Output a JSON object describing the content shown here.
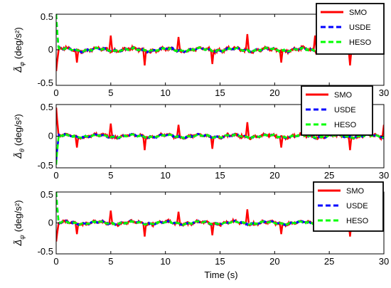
{
  "chart_data": {
    "type": "line",
    "xlabel": "Time (s)",
    "x_ticks": [
      "0",
      "5",
      "10",
      "15",
      "20",
      "25",
      "30"
    ],
    "x_tick_values": [
      0,
      5,
      10,
      15,
      20,
      25,
      30
    ],
    "xlim": [
      0,
      30
    ],
    "legend_placement": "top-right",
    "colors": {
      "SMO": "#ff0000",
      "USDE": "#0000ff",
      "HESO": "#00ff00"
    },
    "subplots": [
      {
        "ylabel_symbol": "Δ̃",
        "ylabel_sub": "φ",
        "ylabel_unit": "(deg/s²)",
        "y_ticks": [
          "-0.5",
          "0",
          "0.5"
        ],
        "y_tick_values": [
          -0.5,
          0,
          0.5
        ],
        "ylim": [
          -0.5,
          0.5
        ],
        "spike_times": [
          1.9,
          5.0,
          8.1,
          11.2,
          14.3,
          17.5,
          20.6,
          23.7,
          26.9,
          30.0
        ],
        "series": [
          {
            "name": "SMO",
            "initial_peak": -0.3
          },
          {
            "name": "USDE",
            "initial_peak": 0.5
          },
          {
            "name": "HESO",
            "initial_peak": 0.5
          }
        ]
      },
      {
        "ylabel_symbol": "Δ̃",
        "ylabel_sub": "θ",
        "ylabel_unit": "(deg/s²)",
        "y_ticks": [
          "-0.5",
          "0",
          "0.5"
        ],
        "y_tick_values": [
          -0.5,
          0,
          0.5
        ],
        "ylim": [
          -0.5,
          0.5
        ],
        "spike_times": [
          1.9,
          5.0,
          8.1,
          11.2,
          14.3,
          17.5,
          20.6,
          23.7,
          26.9,
          30.0
        ],
        "series": [
          {
            "name": "SMO",
            "initial_peak": 0.45
          },
          {
            "name": "USDE",
            "initial_peak": -0.4
          },
          {
            "name": "HESO",
            "initial_peak": -0.45
          }
        ]
      },
      {
        "ylabel_symbol": "Δ̃",
        "ylabel_sub": "ψ",
        "ylabel_unit": "(deg/s²)",
        "y_ticks": [
          "-0.5",
          "0",
          "0.5"
        ],
        "y_tick_values": [
          -0.5,
          0,
          0.5
        ],
        "ylim": [
          -0.5,
          0.5
        ],
        "spike_times": [
          1.9,
          5.0,
          8.1,
          11.2,
          14.3,
          17.5,
          20.6,
          23.7,
          26.9,
          30.0
        ],
        "series": [
          {
            "name": "SMO",
            "initial_peak": -0.3
          },
          {
            "name": "USDE",
            "initial_peak": 0.5
          },
          {
            "name": "HESO",
            "initial_peak": 0.5
          }
        ]
      }
    ]
  }
}
